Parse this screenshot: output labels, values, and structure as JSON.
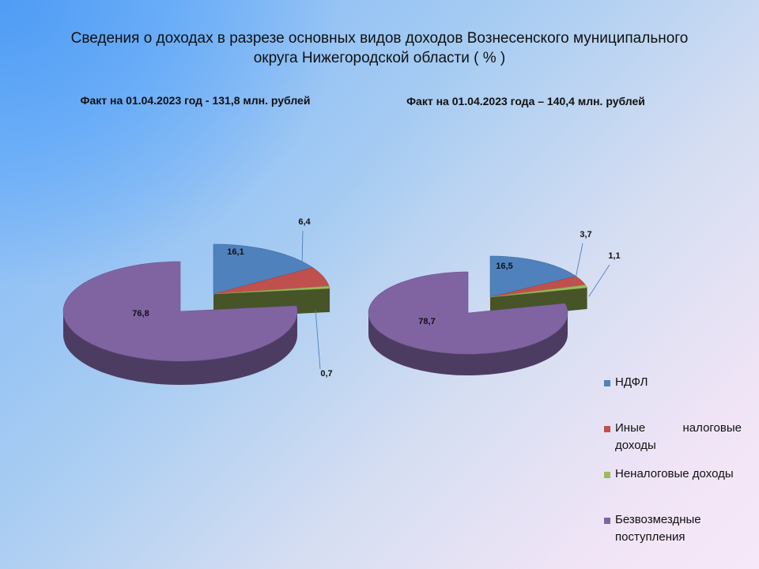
{
  "title_line1": "Сведения о доходах в разрезе основных видов доходов  Вознесенского муниципального",
  "title_line2": "округа Нижегородской области ( % )",
  "colors": {
    "ndfl": "#4f81bd",
    "other_tax": "#c0504d",
    "non_tax": "#9bbb59",
    "grants": "#8064a2"
  },
  "chart_data": [
    {
      "type": "pie",
      "title": "Факт на 01.04.2023 год -  131,8 млн. рублей",
      "categories": [
        "НДФЛ",
        "Иные налоговые доходы",
        "Неналоговые доходы",
        "Безвозмездные поступления"
      ],
      "values": [
        16.1,
        6.4,
        0.7,
        76.8
      ],
      "labels": [
        "16,1",
        "6,4",
        "0,7",
        "76,8"
      ],
      "exploded_slice": "Безвозмездные поступления",
      "style": "3d"
    },
    {
      "type": "pie",
      "title": "Факт на 01.04.2023 года – 140,4 млн. рублей",
      "categories": [
        "НДФЛ",
        "Иные налоговые доходы",
        "Неналоговые доходы",
        "Безвозмездные поступления"
      ],
      "values": [
        16.5,
        3.7,
        1.1,
        78.7
      ],
      "labels": [
        "16,5",
        "3,7",
        "1,1",
        "78,7"
      ],
      "exploded_slice": "Безвозмездные поступления",
      "style": "3d",
      "legend_position": "bottom-right"
    }
  ],
  "legend": [
    {
      "label": "НДФЛ",
      "color_key": "ndfl"
    },
    {
      "label": "Иные налоговые доходы",
      "color_key": "other_tax"
    },
    {
      "label": "Неналоговые доходы",
      "color_key": "non_tax"
    },
    {
      "label": "Безвозмездные поступления",
      "color_key": "grants"
    }
  ]
}
